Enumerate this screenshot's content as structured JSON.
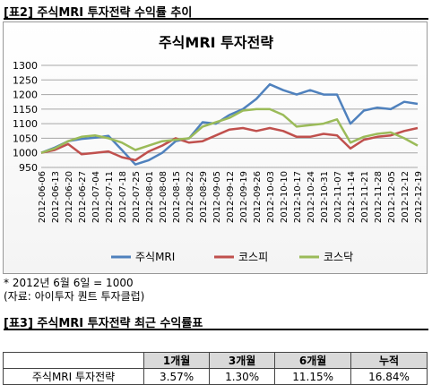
{
  "header2": "[표2] 주식MRI 투자전략 수익률 추이",
  "header3": "[표3] 주식MRI 투자전략 최근 수익률표",
  "notes": [
    "* 2012년 6월 6일 = 1000",
    "(자료: 아이투자 퀀트 투자클럽)"
  ],
  "colors": {
    "주식MRI": "#4F81BD",
    "코스피": "#C0504D",
    "코스닥": "#9BBB59"
  },
  "chart_data": {
    "type": "line",
    "title": "주식MRI 투자전략",
    "ylim": [
      950,
      1300
    ],
    "yticks": [
      950,
      1000,
      1050,
      1100,
      1150,
      1200,
      1250,
      1300
    ],
    "grid": true,
    "legend_position": "bottom",
    "x": [
      "2012-06-06",
      "2012-06-13",
      "2012-06-20",
      "2012-06-27",
      "2012-07-04",
      "2012-07-11",
      "2012-07-18",
      "2012-07-25",
      "2012-08-01",
      "2012-08-08",
      "2012-08-15",
      "2012-08-22",
      "2012-08-29",
      "2012-09-05",
      "2012-09-12",
      "2012-09-19",
      "2012-09-26",
      "2012-10-03",
      "2012-10-10",
      "2012-10-17",
      "2012-10-24",
      "2012-10-31",
      "2012-11-07",
      "2012-11-14",
      "2012-11-21",
      "2012-11-28",
      "2012-12-05",
      "2012-12-12",
      "2012-12-19"
    ],
    "series": [
      {
        "name": "주식MRI",
        "values": [
          1000,
          1018,
          1040,
          1048,
          1052,
          1058,
          1010,
          960,
          975,
          1000,
          1040,
          1050,
          1105,
          1100,
          1130,
          1150,
          1185,
          1235,
          1215,
          1200,
          1215,
          1200,
          1200,
          1100,
          1145,
          1155,
          1150,
          1175,
          1168
        ]
      },
      {
        "name": "코스피",
        "values": [
          1000,
          1010,
          1030,
          995,
          1000,
          1005,
          985,
          975,
          1005,
          1025,
          1050,
          1035,
          1040,
          1060,
          1080,
          1085,
          1075,
          1085,
          1075,
          1055,
          1055,
          1065,
          1060,
          1015,
          1045,
          1055,
          1060,
          1075,
          1085
        ]
      },
      {
        "name": "코스닥",
        "values": [
          1000,
          1015,
          1040,
          1055,
          1060,
          1050,
          1035,
          1010,
          1025,
          1040,
          1045,
          1050,
          1090,
          1105,
          1120,
          1145,
          1150,
          1150,
          1130,
          1090,
          1095,
          1100,
          1115,
          1035,
          1055,
          1065,
          1070,
          1050,
          1025
        ]
      }
    ]
  },
  "table": {
    "headers": [
      "1개월",
      "3개월",
      "6개월",
      "누적"
    ],
    "row_label": "주식MRI 투자전략",
    "values": [
      "3.57%",
      "1.30%",
      "11.15%",
      "16.84%"
    ]
  }
}
